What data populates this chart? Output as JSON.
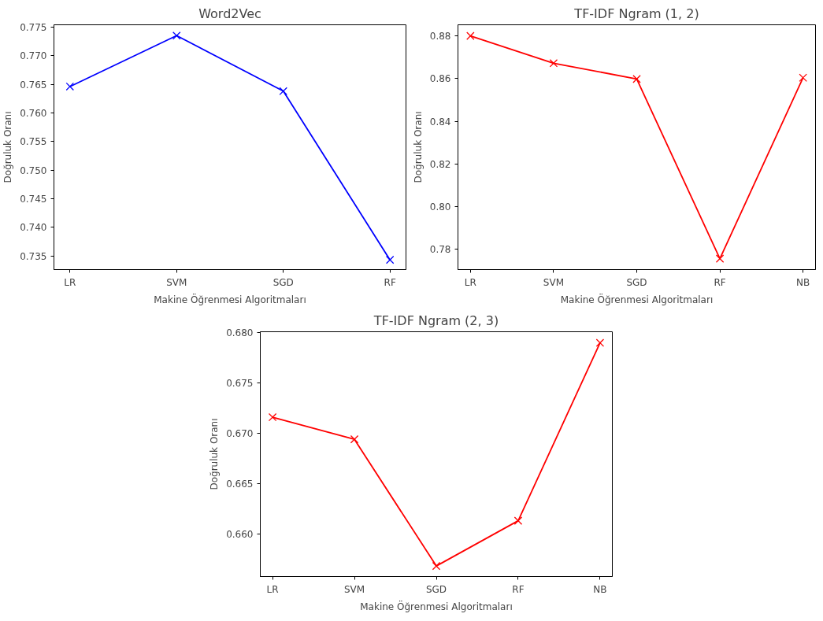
{
  "chart_data": [
    {
      "type": "line",
      "title": "Word2Vec",
      "xlabel": "Makine Öğrenmesi Algoritmaları",
      "ylabel": "Doğruluk Oranı",
      "categories": [
        "LR",
        "SVM",
        "SGD",
        "RF"
      ],
      "series": [
        {
          "color": "#0000ff",
          "values": [
            0.7646,
            0.7735,
            0.7638,
            0.7343
          ]
        }
      ],
      "ylim": [
        0.7326,
        0.7754
      ],
      "yticks": [
        {
          "value": 0.735,
          "label": "0.735"
        },
        {
          "value": 0.74,
          "label": "0.740"
        },
        {
          "value": 0.745,
          "label": "0.745"
        },
        {
          "value": 0.75,
          "label": "0.750"
        },
        {
          "value": 0.755,
          "label": "0.755"
        },
        {
          "value": 0.76,
          "label": "0.760"
        },
        {
          "value": 0.765,
          "label": "0.765"
        },
        {
          "value": 0.77,
          "label": "0.770"
        },
        {
          "value": 0.775,
          "label": "0.775"
        }
      ],
      "grid": false,
      "marker": "cross",
      "line_style": "solid"
    },
    {
      "type": "line",
      "title": "TF-IDF Ngram (1, 2)",
      "xlabel": "Makine Öğrenmesi Algoritmaları",
      "ylabel": "Doğruluk Oranı",
      "categories": [
        "LR",
        "SVM",
        "SGD",
        "RF",
        "NB"
      ],
      "series": [
        {
          "color": "#ff0000",
          "values": [
            0.88,
            0.8672,
            0.8598,
            0.7756,
            0.8604
          ]
        }
      ],
      "ylim": [
        0.7705,
        0.8852
      ],
      "yticks": [
        0.78,
        {
          "value": 0.8,
          "label": "0.80"
        },
        0.82,
        0.84,
        0.86,
        0.88
      ],
      "grid": false,
      "marker": "cross",
      "line_style": "solid"
    },
    {
      "type": "line",
      "title": "TF-IDF Ngram (2, 3)",
      "xlabel": "Makine Öğrenmesi Algoritmaları",
      "ylabel": "Doğruluk Oranı",
      "categories": [
        "LR",
        "SVM",
        "SGD",
        "RF",
        "NB"
      ],
      "series": [
        {
          "color": "#ff0000",
          "values": [
            0.6716,
            0.6694,
            0.6568,
            0.6613,
            0.679
          ]
        }
      ],
      "ylim": [
        0.65575,
        0.6801
      ],
      "yticks": [
        {
          "value": 0.66,
          "label": "0.660"
        },
        0.665,
        {
          "value": 0.67,
          "label": "0.670"
        },
        0.675,
        {
          "value": 0.68,
          "label": "0.680"
        }
      ],
      "grid": false,
      "marker": "cross",
      "line_style": "solid"
    }
  ]
}
